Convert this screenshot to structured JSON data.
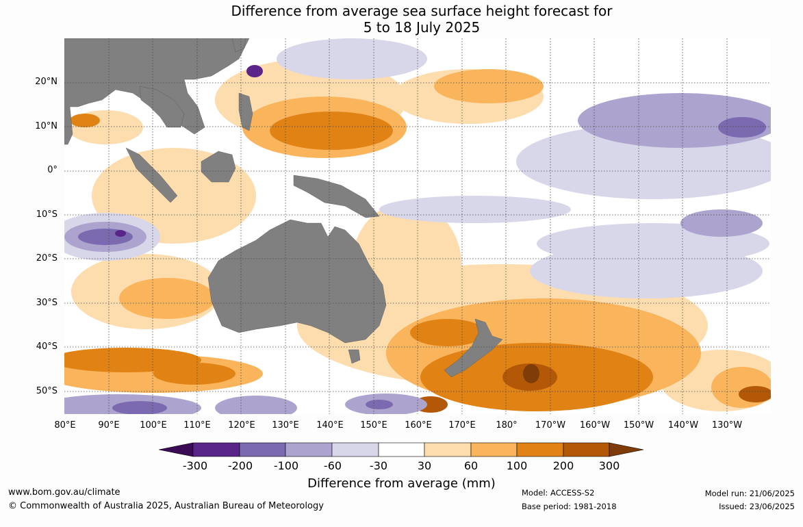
{
  "title": {
    "line1": "Difference from average sea surface height forecast for",
    "line2": "5 to 18 July 2025"
  },
  "map": {
    "lat_labels": [
      "20°N",
      "10°N",
      "0°",
      "10°S",
      "20°S",
      "30°S",
      "40°S",
      "50°S"
    ],
    "lon_labels": [
      "80°E",
      "90°E",
      "100°E",
      "110°E",
      "120°E",
      "130°E",
      "140°E",
      "150°E",
      "160°E",
      "170°E",
      "180°",
      "170°W",
      "160°W",
      "150°W",
      "140°W",
      "130°W"
    ],
    "colors": {
      "land": "#808080",
      "ocean_neutral": "#ffffff",
      "grid": "#444444"
    }
  },
  "colorbar": {
    "labels": [
      "-300",
      "-200",
      "-100",
      "-60",
      "-30",
      "30",
      "60",
      "100",
      "200",
      "300"
    ],
    "colors": [
      "#3b0b55",
      "#5a2588",
      "#7c6ab0",
      "#aca4cf",
      "#d8d7ea",
      "#ffffff",
      "#fddcae",
      "#f9b45c",
      "#e08214",
      "#b35806",
      "#7f3b08"
    ],
    "title": "Difference from average (mm)"
  },
  "footer": {
    "url": "www.bom.gov.au/climate",
    "copyright": "© Commonwealth of Australia 2025, Australian Bureau of Meteorology",
    "model": "Model: ACCESS-S2",
    "base_period": "Base period: 1981-2018",
    "model_run": "Model run: 21/06/2025",
    "issued": "Issued: 23/06/2025"
  }
}
